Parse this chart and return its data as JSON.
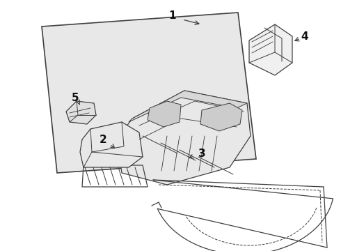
{
  "background_color": "#ffffff",
  "panel_color": "#e8e8e8",
  "line_color": "#404040",
  "line_width": 0.9,
  "label_color": "#111111",
  "fig_width": 4.9,
  "fig_height": 3.6,
  "dpi": 100
}
